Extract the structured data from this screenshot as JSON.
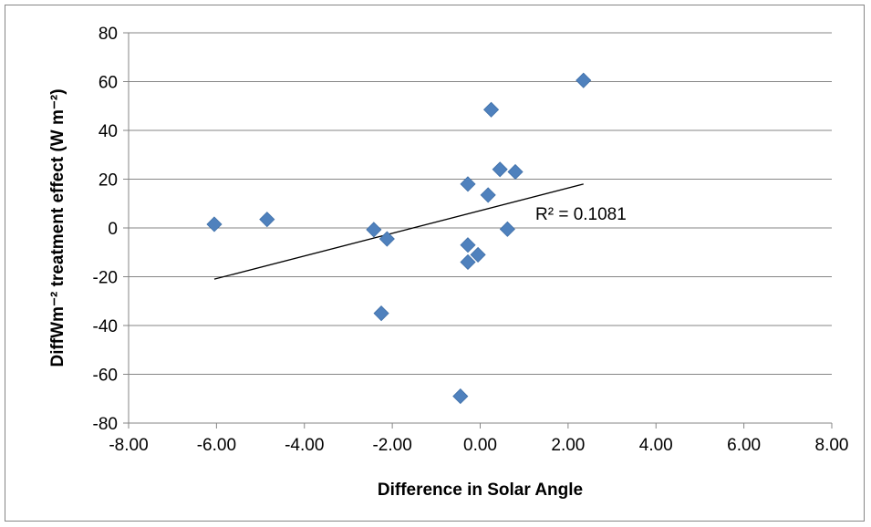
{
  "chart_data": {
    "type": "scatter",
    "title": "",
    "xlabel": "Difference in Solar Angle",
    "ylabel": "DiffWm⁻² treatment effect (W m⁻²)",
    "xlim": [
      -8,
      8
    ],
    "ylim": [
      -80,
      80
    ],
    "x_ticks": [
      -8,
      -6,
      -4,
      -2,
      0,
      2,
      4,
      6,
      8
    ],
    "x_tick_labels": [
      "-8.00",
      "-6.00",
      "-4.00",
      "-2.00",
      "0.00",
      "2.00",
      "4.00",
      "6.00",
      "8.00"
    ],
    "y_ticks": [
      -80,
      -60,
      -40,
      -20,
      0,
      20,
      40,
      60,
      80
    ],
    "y_tick_labels": [
      "-80",
      "-60",
      "-40",
      "-20",
      "0",
      "20",
      "40",
      "60",
      "80"
    ],
    "grid": "horizontal",
    "legend": "none",
    "series": [
      {
        "marker": "diamond",
        "color": "#4F81BD",
        "points": [
          {
            "x": -6.05,
            "y": 1.5
          },
          {
            "x": -4.85,
            "y": 3.5
          },
          {
            "x": -2.42,
            "y": -0.7
          },
          {
            "x": -2.12,
            "y": -4.5
          },
          {
            "x": -2.25,
            "y": -35
          },
          {
            "x": -0.45,
            "y": -69
          },
          {
            "x": -0.28,
            "y": -7
          },
          {
            "x": -0.28,
            "y": -14
          },
          {
            "x": -0.05,
            "y": -11
          },
          {
            "x": -0.28,
            "y": 18
          },
          {
            "x": 0.18,
            "y": 13.5
          },
          {
            "x": 0.25,
            "y": 48.5
          },
          {
            "x": 0.45,
            "y": 24
          },
          {
            "x": 0.62,
            "y": -0.5
          },
          {
            "x": 0.8,
            "y": 23
          },
          {
            "x": 2.35,
            "y": 60.5
          }
        ]
      }
    ],
    "trendline": {
      "type": "linear",
      "color": "#000000",
      "x_range": [
        -6.05,
        2.35
      ],
      "y_range": [
        -21,
        18
      ],
      "r2_label": "R² = 0.1081"
    }
  }
}
